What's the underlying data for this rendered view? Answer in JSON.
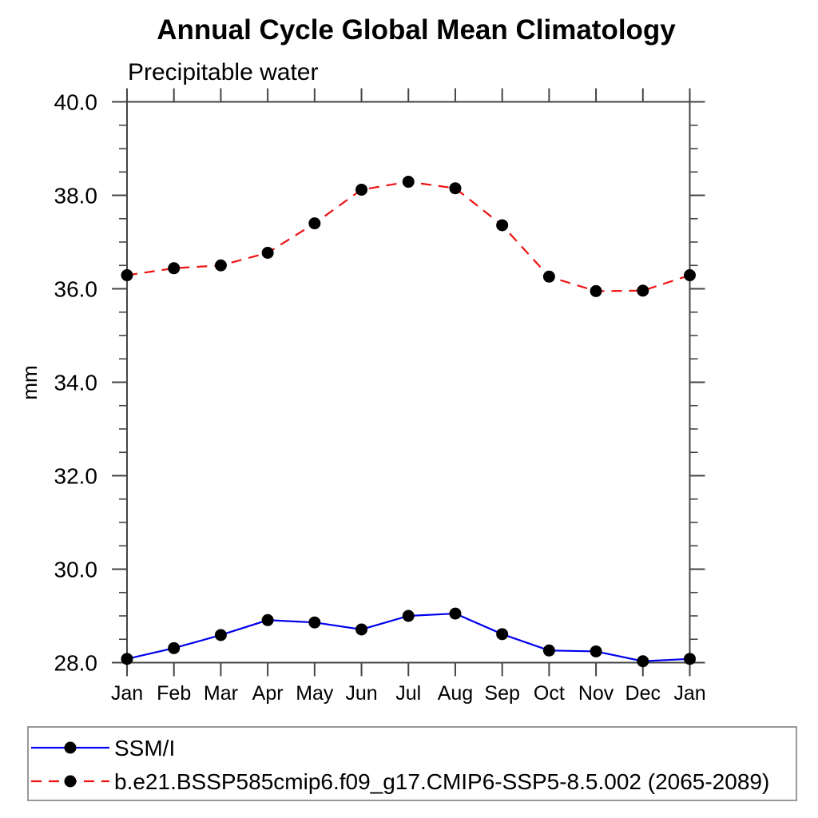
{
  "chart_data": {
    "type": "line",
    "title": "Annual Cycle Global Mean Climatology",
    "subtitle": "Precipitable water",
    "ylabel": "mm",
    "xlabel": "",
    "categories": [
      "Jan",
      "Feb",
      "Mar",
      "Apr",
      "May",
      "Jun",
      "Jul",
      "Aug",
      "Sep",
      "Oct",
      "Nov",
      "Dec",
      "Jan"
    ],
    "ylim": [
      28.0,
      40.0
    ],
    "ytick_major_step": 2.0,
    "ytick_minor_step": 0.5,
    "ytick_labels": [
      "28.0",
      "30.0",
      "32.0",
      "34.0",
      "36.0",
      "38.0",
      "40.0"
    ],
    "grid": false,
    "legend_position": "bottom-left-box",
    "frame_color": "#444444",
    "series": [
      {
        "name": "SSM/I",
        "color": "#0000ee",
        "line_style": "solid",
        "marker": "circle",
        "marker_color": "#000000",
        "values": [
          28.08,
          28.31,
          28.59,
          28.91,
          28.86,
          28.71,
          29.0,
          29.05,
          28.61,
          28.26,
          28.24,
          28.03,
          28.08
        ]
      },
      {
        "name": "b.e21.BSSP585cmip6.f09_g17.CMIP6-SSP5-8.5.002 (2065-2089)",
        "color": "#ee1111",
        "line_style": "dashed",
        "marker": "circle",
        "marker_color": "#000000",
        "values": [
          36.29,
          36.44,
          36.5,
          36.77,
          37.4,
          38.12,
          38.29,
          38.15,
          37.36,
          36.26,
          35.95,
          35.96,
          36.29
        ]
      }
    ]
  }
}
